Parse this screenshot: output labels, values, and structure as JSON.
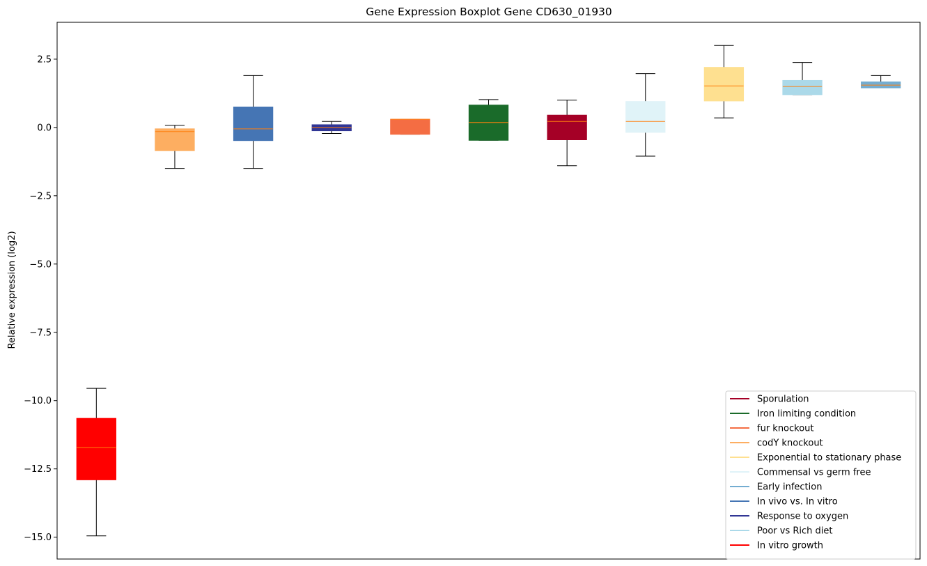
{
  "chart_data": {
    "type": "boxplot",
    "title": "Gene Expression Boxplot Gene CD630_01930",
    "xlabel": "",
    "ylabel": "Relative expression (log2)",
    "ylim": [
      -15.8,
      3.85
    ],
    "yticks": [
      2.5,
      0.0,
      -2.5,
      -5.0,
      -7.5,
      -10.0,
      -12.5,
      -15.0
    ],
    "ytick_labels": [
      "2.5",
      "0.0",
      "−2.5",
      "−5.0",
      "−7.5",
      "−10.0",
      "−12.5",
      "−15.0"
    ],
    "median_color": "#ff7f0e",
    "series": [
      {
        "name": "In vitro growth",
        "color": "#ff0000",
        "whisker_low": -14.95,
        "q1": -12.9,
        "median": -11.72,
        "q3": -10.65,
        "whisker_high": -9.55
      },
      {
        "name": "codY knockout",
        "color": "#fdae61",
        "whisker_low": -1.5,
        "q1": -0.85,
        "median": -0.15,
        "q3": -0.05,
        "whisker_high": 0.08
      },
      {
        "name": "In vivo vs. In vitro",
        "color": "#4575b4",
        "whisker_low": -1.5,
        "q1": -0.48,
        "median": -0.05,
        "q3": 0.75,
        "whisker_high": 1.9
      },
      {
        "name": "Response to oxygen",
        "color": "#313695",
        "whisker_low": -0.22,
        "q1": -0.12,
        "median": 0.0,
        "q3": 0.1,
        "whisker_high": 0.22
      },
      {
        "name": "fur knockout",
        "color": "#f46d43",
        "whisker_low": -0.25,
        "q1": -0.25,
        "median": 0.3,
        "q3": 0.3,
        "whisker_high": 0.3
      },
      {
        "name": "Iron limiting condition",
        "color": "#1a6b2a",
        "whisker_low": -0.47,
        "q1": -0.47,
        "median": 0.18,
        "q3": 0.82,
        "whisker_high": 1.02
      },
      {
        "name": "Sporulation",
        "color": "#a50026",
        "whisker_low": -1.4,
        "q1": -0.45,
        "median": 0.22,
        "q3": 0.45,
        "whisker_high": 1.0
      },
      {
        "name": "Commensal vs germ free",
        "color": "#e0f3f8",
        "whisker_low": -1.05,
        "q1": -0.18,
        "median": 0.22,
        "q3": 0.95,
        "whisker_high": 1.97
      },
      {
        "name": "Exponential to stationary phase",
        "color": "#fee090",
        "whisker_low": 0.35,
        "q1": 0.97,
        "median": 1.52,
        "q3": 2.2,
        "whisker_high": 3.0
      },
      {
        "name": "Poor vs Rich diet",
        "color": "#abd9e9",
        "whisker_low": 1.2,
        "q1": 1.2,
        "median": 1.5,
        "q3": 1.72,
        "whisker_high": 2.38
      },
      {
        "name": "Early infection",
        "color": "#74add1",
        "whisker_low": 1.45,
        "q1": 1.45,
        "median": 1.55,
        "q3": 1.67,
        "whisker_high": 1.9
      }
    ],
    "legend": {
      "placement": "lower-right",
      "entries": [
        {
          "label": "Sporulation",
          "color": "#a50026"
        },
        {
          "label": "Iron limiting condition",
          "color": "#1a6b2a"
        },
        {
          "label": "fur knockout",
          "color": "#f46d43"
        },
        {
          "label": "codY knockout",
          "color": "#fdae61"
        },
        {
          "label": "Exponential to stationary phase",
          "color": "#fee090"
        },
        {
          "label": "Commensal vs germ free",
          "color": "#e0f3f8"
        },
        {
          "label": "Early infection",
          "color": "#74add1"
        },
        {
          "label": "In vivo vs. In vitro",
          "color": "#4575b4"
        },
        {
          "label": "Response to oxygen",
          "color": "#313695"
        },
        {
          "label": "Poor vs Rich diet",
          "color": "#abd9e9"
        },
        {
          "label": "In vitro growth",
          "color": "#ff0000"
        }
      ]
    },
    "grid": false
  }
}
